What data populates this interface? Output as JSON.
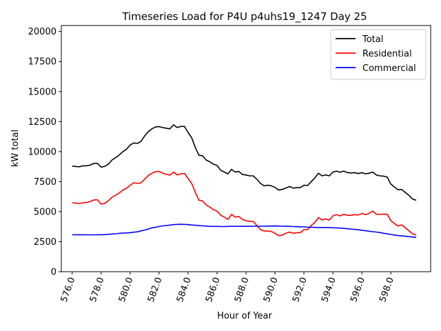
{
  "chart_data": {
    "type": "line",
    "title": "Timeseries Load for P4U p4uhs19_1247  Day 25",
    "xlabel": "Hour of Year",
    "ylabel": "kW total",
    "xlim": [
      575.25,
      600.75
    ],
    "ylim": [
      0,
      20500
    ],
    "xticks": [
      576,
      578,
      580,
      582,
      584,
      586,
      588,
      590,
      592,
      594,
      596,
      598
    ],
    "xtick_labels": [
      "576.0",
      "578.0",
      "580.0",
      "582.0",
      "584.0",
      "586.0",
      "588.0",
      "590.0",
      "592.0",
      "594.0",
      "596.0",
      "598.0"
    ],
    "yticks": [
      0,
      2500,
      5000,
      7500,
      10000,
      12500,
      15000,
      17500,
      20000
    ],
    "ytick_labels": [
      "0",
      "2500",
      "5000",
      "7500",
      "10000",
      "12500",
      "15000",
      "17500",
      "20000"
    ],
    "grid": false,
    "legend_position": "top-right",
    "x": [
      576.0,
      576.25,
      576.5,
      576.75,
      577.0,
      577.25,
      577.5,
      577.75,
      578.0,
      578.25,
      578.5,
      578.75,
      579.0,
      579.25,
      579.5,
      579.75,
      580.0,
      580.25,
      580.5,
      580.75,
      581.0,
      581.25,
      581.5,
      581.75,
      582.0,
      582.25,
      582.5,
      582.75,
      583.0,
      583.25,
      583.5,
      583.75,
      584.0,
      584.25,
      584.5,
      584.75,
      585.0,
      585.25,
      585.5,
      585.75,
      586.0,
      586.25,
      586.5,
      586.75,
      587.0,
      587.25,
      587.5,
      587.75,
      588.0,
      588.25,
      588.5,
      588.75,
      589.0,
      589.25,
      589.5,
      589.75,
      590.0,
      590.25,
      590.5,
      590.75,
      591.0,
      591.25,
      591.5,
      591.75,
      592.0,
      592.25,
      592.5,
      592.75,
      593.0,
      593.25,
      593.5,
      593.75,
      594.0,
      594.25,
      594.5,
      594.75,
      595.0,
      595.25,
      595.5,
      595.75,
      596.0,
      596.25,
      596.5,
      596.75,
      597.0,
      597.25,
      597.5,
      597.75,
      598.0,
      598.25,
      598.5,
      598.75,
      599.0,
      599.25,
      599.5,
      599.75
    ],
    "series": [
      {
        "name": "Total",
        "color": "#000000",
        "values": [
          8800,
          8760,
          8740,
          8820,
          8820,
          8880,
          9020,
          9020,
          8700,
          8780,
          8950,
          9300,
          9500,
          9720,
          10000,
          10200,
          10550,
          10720,
          10680,
          10850,
          11300,
          11650,
          11900,
          12050,
          12080,
          12000,
          11950,
          11900,
          12230,
          12000,
          12100,
          12100,
          11600,
          11150,
          10350,
          9700,
          9650,
          9300,
          9150,
          8950,
          8850,
          8450,
          8300,
          8150,
          8520,
          8300,
          8350,
          8100,
          8050,
          7980,
          7980,
          7700,
          7350,
          7150,
          7200,
          7150,
          7020,
          6800,
          6850,
          6960,
          7100,
          6960,
          7000,
          7000,
          7200,
          7180,
          7500,
          7800,
          8200,
          7980,
          8060,
          7980,
          8300,
          8380,
          8280,
          8380,
          8260,
          8220,
          8250,
          8170,
          8250,
          8150,
          8200,
          8300,
          8050,
          7980,
          7960,
          7880,
          7300,
          7050,
          6820,
          6850,
          6600,
          6350,
          6050,
          5950
        ]
      },
      {
        "name": "Residential",
        "color": "#ff0000",
        "values": [
          5750,
          5700,
          5680,
          5750,
          5760,
          5850,
          5980,
          5990,
          5620,
          5700,
          5920,
          6200,
          6380,
          6550,
          6800,
          6950,
          7200,
          7400,
          7350,
          7400,
          7700,
          8000,
          8200,
          8330,
          8350,
          8200,
          8100,
          8040,
          8300,
          8050,
          8150,
          8180,
          7750,
          7350,
          6600,
          5950,
          5900,
          5550,
          5380,
          5150,
          5050,
          4700,
          4550,
          4350,
          4780,
          4550,
          4600,
          4350,
          4250,
          4200,
          4180,
          3850,
          3500,
          3380,
          3380,
          3350,
          3200,
          3000,
          3050,
          3200,
          3300,
          3200,
          3250,
          3250,
          3500,
          3500,
          3850,
          4100,
          4500,
          4300,
          4400,
          4300,
          4650,
          4750,
          4650,
          4780,
          4700,
          4700,
          4750,
          4720,
          4850,
          4750,
          4850,
          5050,
          4780,
          4780,
          4800,
          4780,
          4250,
          4000,
          3800,
          3900,
          3650,
          3400,
          3150,
          3050
        ]
      },
      {
        "name": "Commercial",
        "color": "#0000ff",
        "values": [
          3080,
          3075,
          3075,
          3075,
          3070,
          3070,
          3070,
          3075,
          3080,
          3090,
          3110,
          3140,
          3160,
          3190,
          3220,
          3230,
          3250,
          3290,
          3320,
          3400,
          3470,
          3550,
          3650,
          3700,
          3760,
          3820,
          3850,
          3880,
          3920,
          3940,
          3950,
          3940,
          3920,
          3890,
          3870,
          3840,
          3820,
          3800,
          3780,
          3770,
          3770,
          3760,
          3760,
          3770,
          3780,
          3780,
          3780,
          3780,
          3780,
          3780,
          3790,
          3790,
          3790,
          3790,
          3800,
          3800,
          3810,
          3800,
          3790,
          3780,
          3770,
          3760,
          3750,
          3740,
          3730,
          3710,
          3700,
          3690,
          3680,
          3680,
          3670,
          3670,
          3660,
          3650,
          3630,
          3610,
          3580,
          3550,
          3520,
          3490,
          3450,
          3410,
          3370,
          3330,
          3300,
          3260,
          3200,
          3150,
          3100,
          3050,
          3010,
          2980,
          2950,
          2920,
          2890,
          2860
        ]
      }
    ]
  }
}
